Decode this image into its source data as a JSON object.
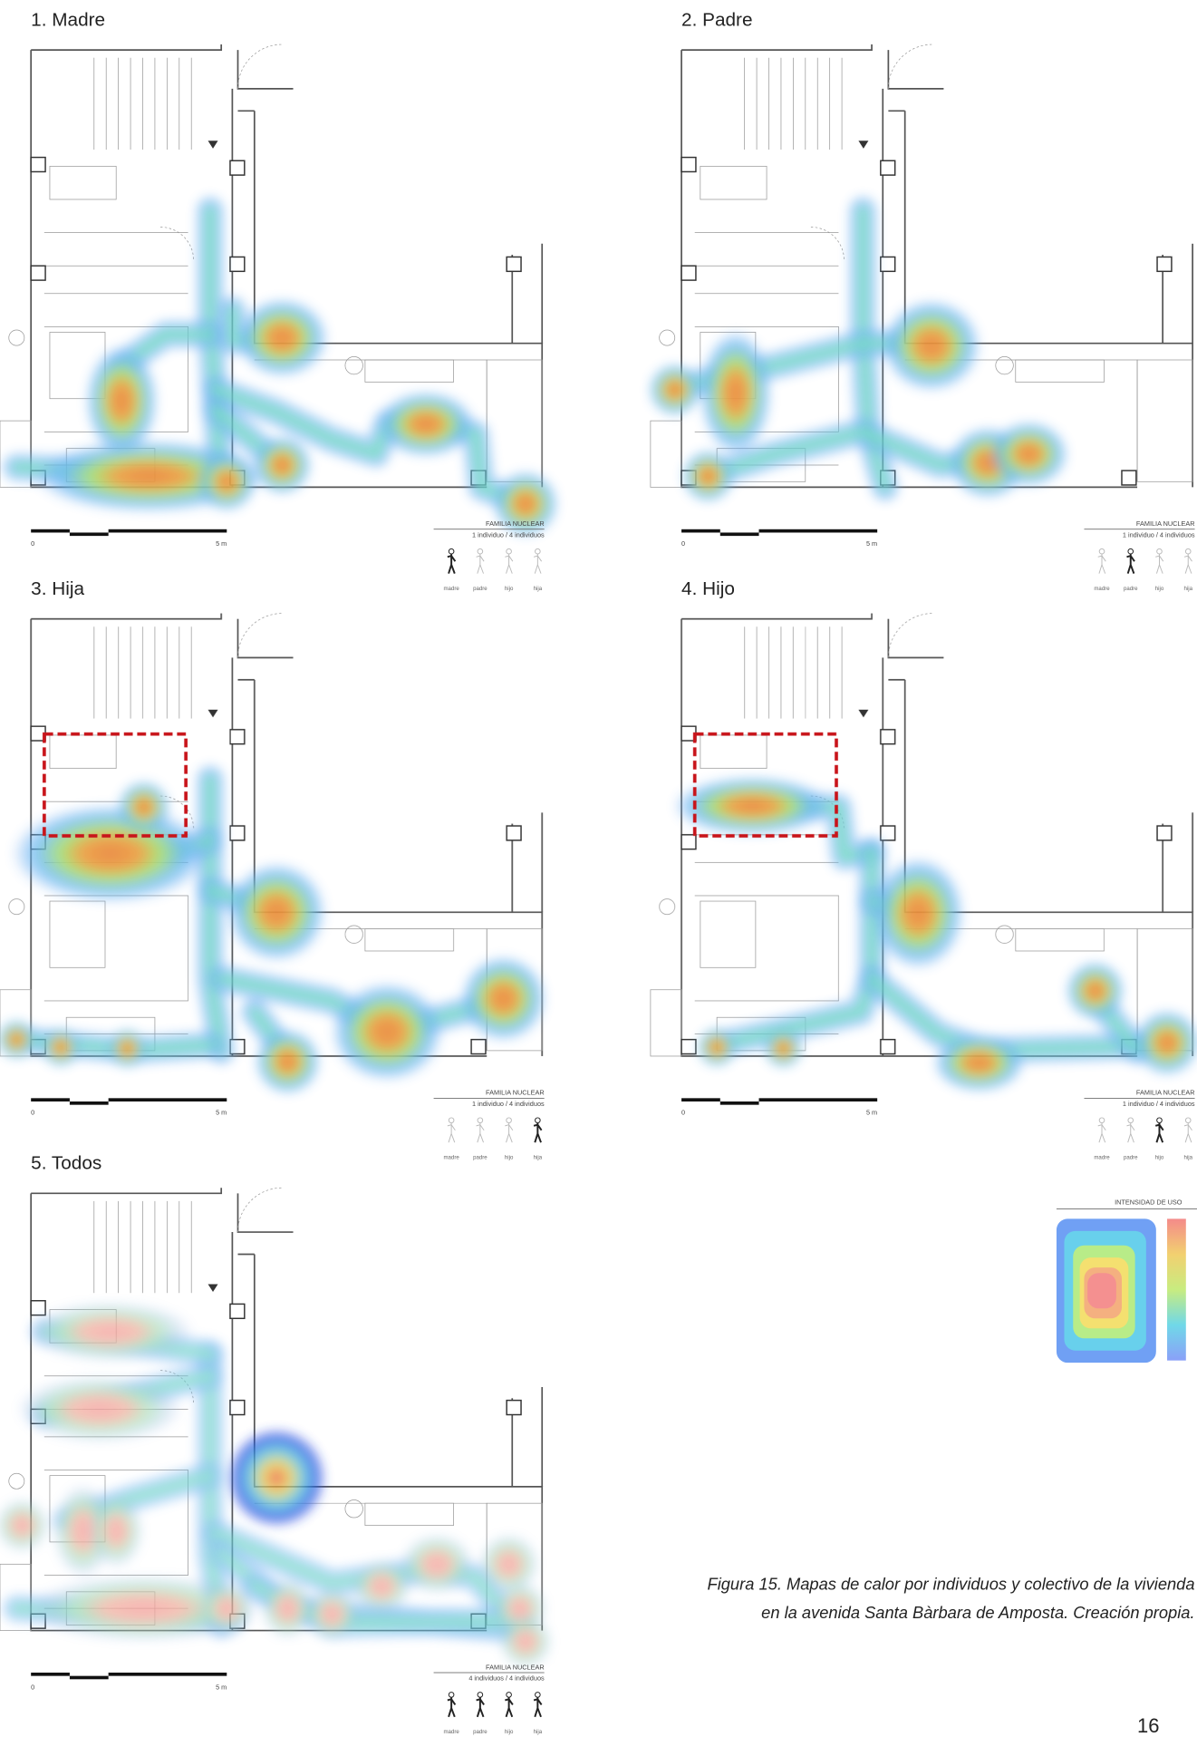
{
  "panels": [
    {
      "title": "1. Madre",
      "scale": {
        "start": "0",
        "end": "5 m"
      },
      "legend": {
        "title": "FAMILIA NUCLEAR",
        "subtitle": "1 individuo / 4 individuos",
        "figures": [
          "madre",
          "padre",
          "hijo",
          "hija"
        ],
        "active": [
          0
        ]
      }
    },
    {
      "title": "2. Padre",
      "scale": {
        "start": "0",
        "end": "5 m"
      },
      "legend": {
        "title": "FAMILIA NUCLEAR",
        "subtitle": "1 individuo / 4 individuos",
        "figures": [
          "madre",
          "padre",
          "hijo",
          "hija"
        ],
        "active": [
          1
        ]
      }
    },
    {
      "title": "3. Hija",
      "scale": {
        "start": "0",
        "end": "5 m"
      },
      "legend": {
        "title": "FAMILIA NUCLEAR",
        "subtitle": "1 individuo / 4 individuos",
        "figures": [
          "madre",
          "padre",
          "hijo",
          "hija"
        ],
        "active": [
          3
        ]
      }
    },
    {
      "title": "4. Hijo",
      "scale": {
        "start": "0",
        "end": "5 m"
      },
      "legend": {
        "title": "FAMILIA NUCLEAR",
        "subtitle": "1 individuo / 4 individuos",
        "figures": [
          "madre",
          "padre",
          "hijo",
          "hija"
        ],
        "active": [
          2
        ]
      }
    },
    {
      "title": "5. Todos",
      "scale": {
        "start": "0",
        "end": "5 m"
      },
      "legend": {
        "title": "FAMILIA NUCLEAR",
        "subtitle": "4 individuos / 4 individuos",
        "figures": [
          "madre",
          "padre",
          "hijo",
          "hija"
        ],
        "active": [
          0,
          1,
          2,
          3
        ]
      }
    }
  ],
  "intensity_legend": {
    "title": "INTENSIDAD DE USO"
  },
  "caption": [
    "Figura 15.  Mapas de calor por individuos y colectivo de la vivienda",
    "en la avenida Santa Bàrbara de Amposta. Creación propia."
  ],
  "page_number": "16"
}
